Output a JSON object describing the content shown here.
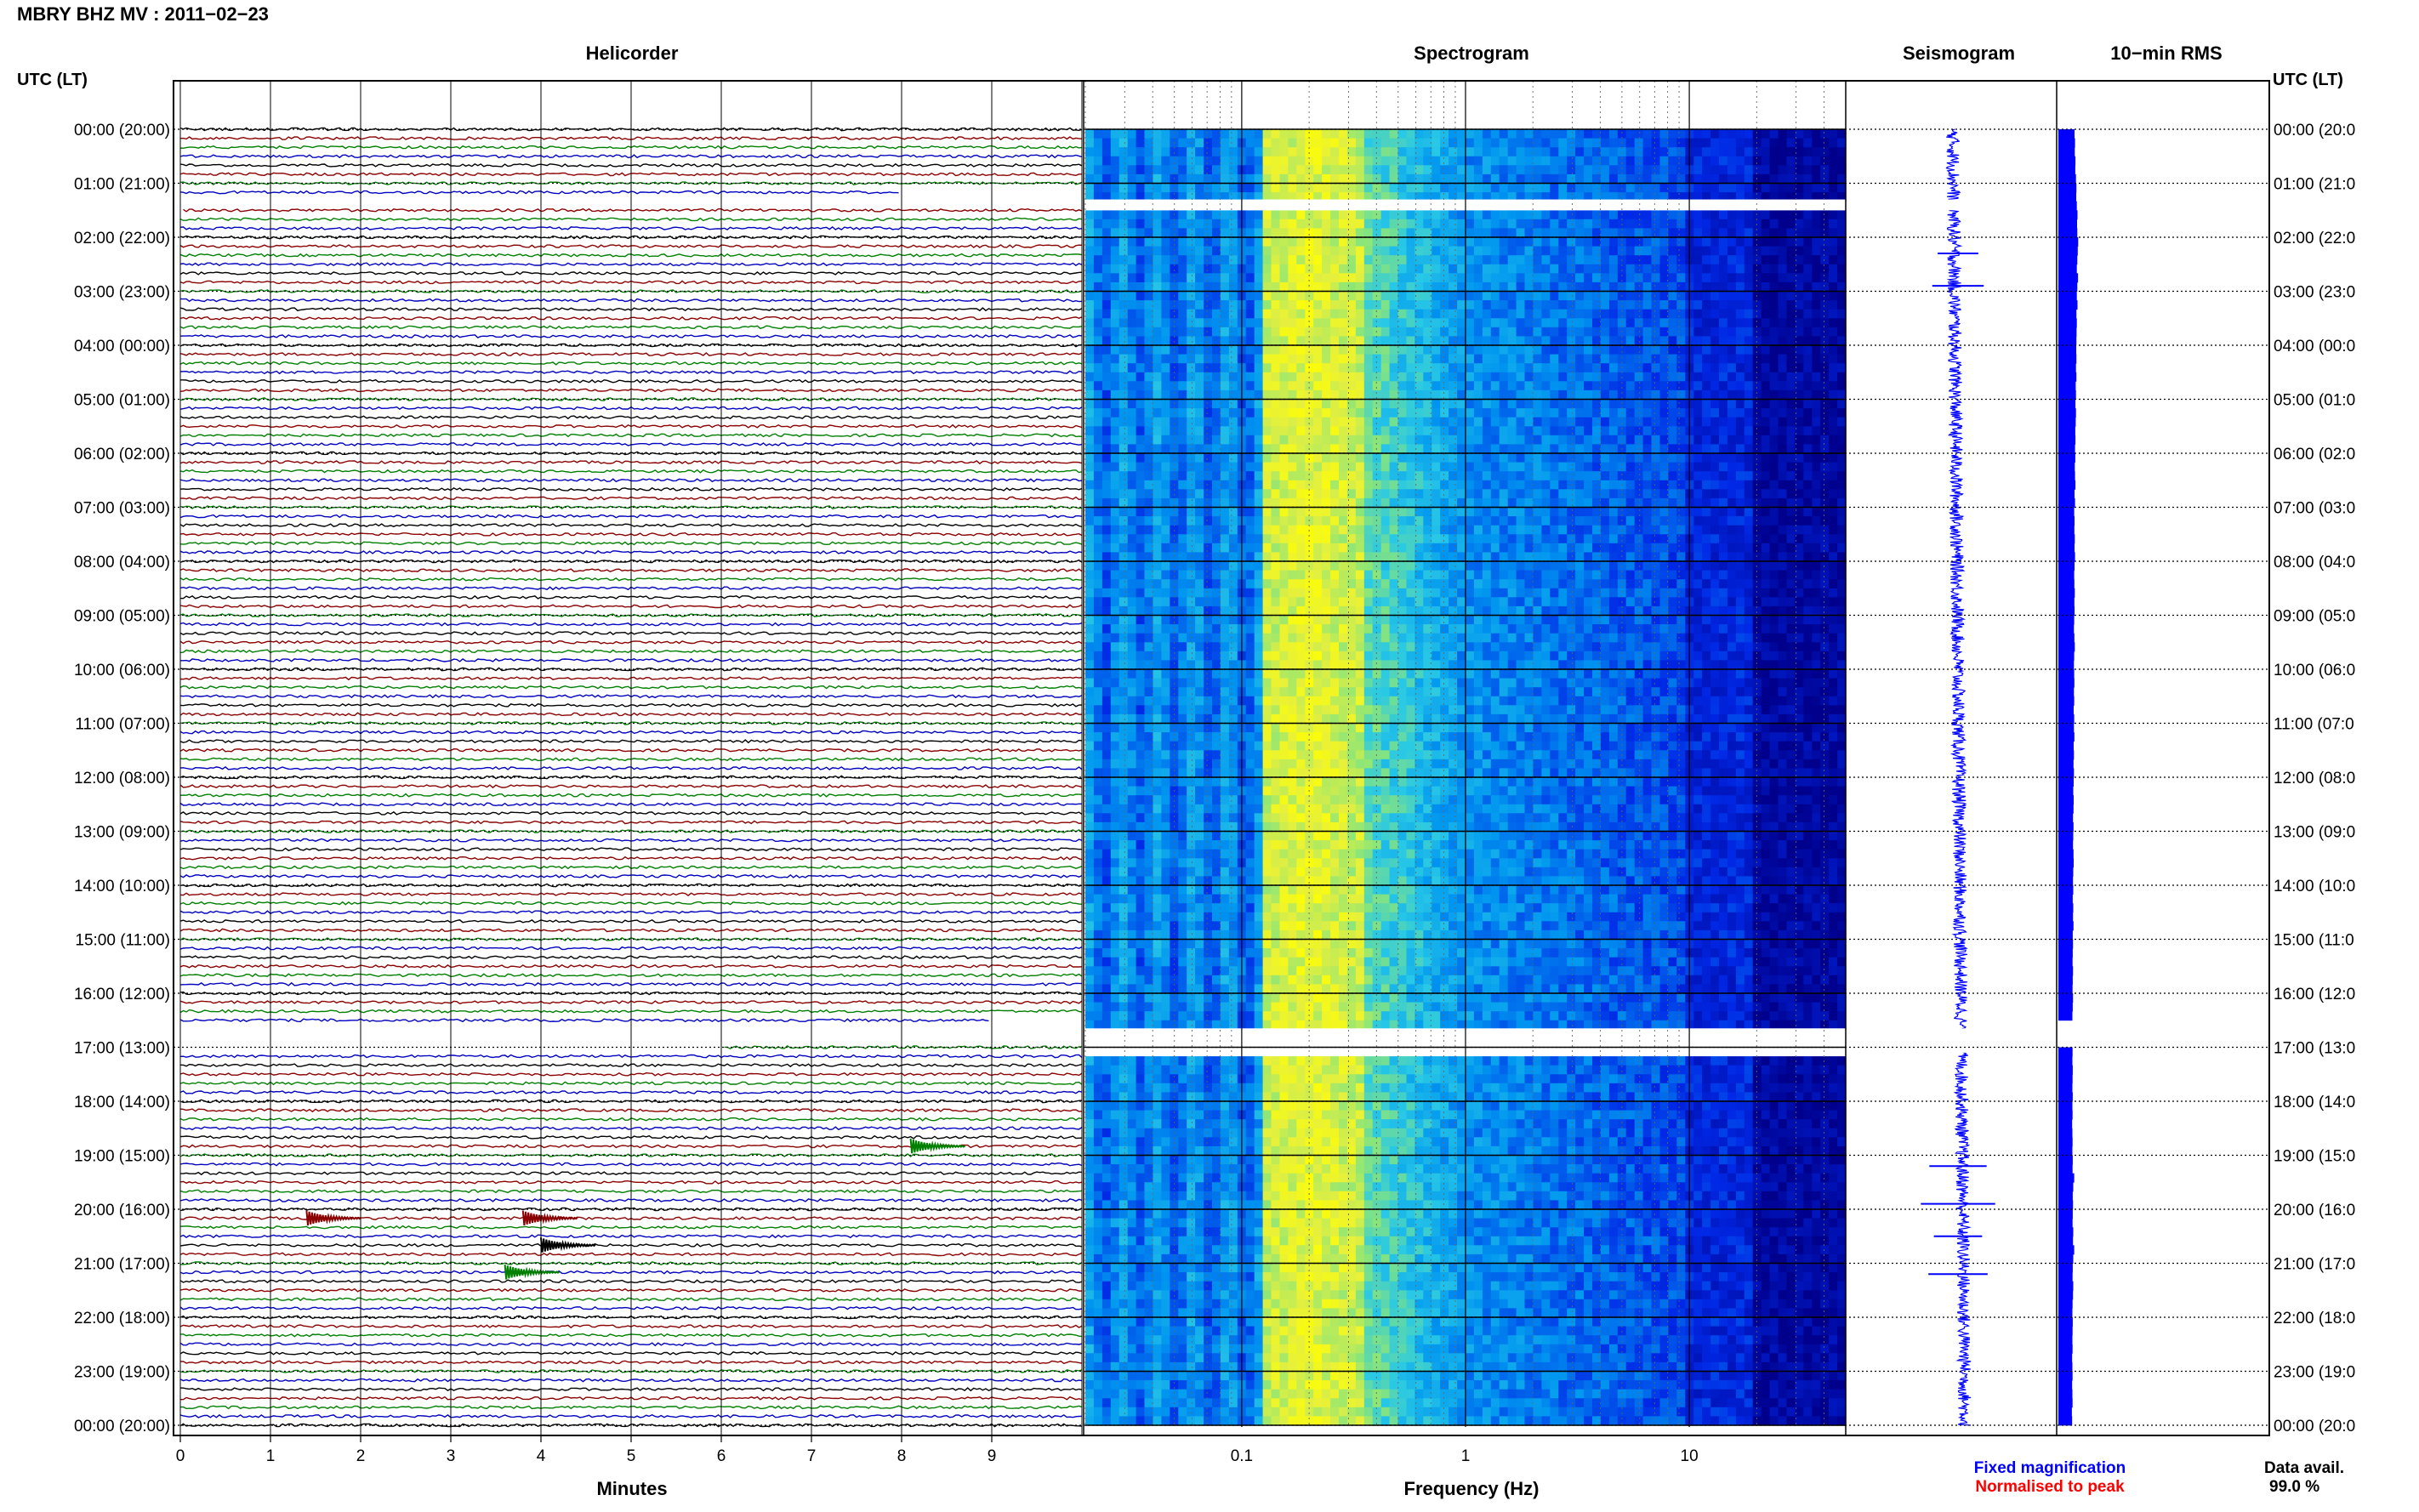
{
  "header": {
    "title": "MBRY BHZ MV : 2011−02−23"
  },
  "panels": {
    "helicorder": "Helicorder",
    "spectrogram": "Spectrogram",
    "seismogram": "Seismogram",
    "rms": "10−min RMS"
  },
  "time_axis": {
    "label_left": "UTC (LT)",
    "label_right": "UTC (LT)",
    "ticks_left": [
      "00:00 (20:00)",
      "01:00 (21:00)",
      "02:00 (22:00)",
      "03:00 (23:00)",
      "04:00 (00:00)",
      "05:00 (01:00)",
      "06:00 (02:00)",
      "07:00 (03:00)",
      "08:00 (04:00)",
      "09:00 (05:00)",
      "10:00 (06:00)",
      "11:00 (07:00)",
      "12:00 (08:00)",
      "13:00 (09:00)",
      "14:00 (10:00)",
      "15:00 (11:00)",
      "16:00 (12:00)",
      "17:00 (13:00)",
      "18:00 (14:00)",
      "19:00 (15:00)",
      "20:00 (16:00)",
      "21:00 (17:00)",
      "22:00 (18:00)",
      "23:00 (19:00)",
      "00:00 (20:00)"
    ],
    "ticks_right": [
      "00:00 (20:0",
      "01:00 (21:0",
      "02:00 (22:0",
      "03:00 (23:0",
      "04:00 (00:0",
      "05:00 (01:0",
      "06:00 (02:0",
      "07:00 (03:0",
      "08:00 (04:0",
      "09:00 (05:0",
      "10:00 (06:0",
      "11:00 (07:0",
      "12:00 (08:0",
      "13:00 (09:0",
      "14:00 (10:0",
      "15:00 (11:0",
      "16:00 (12:0",
      "17:00 (13:0",
      "18:00 (14:0",
      "19:00 (15:0",
      "20:00 (16:0",
      "21:00 (17:0",
      "22:00 (18:0",
      "23:00 (19:0",
      "00:00 (20:0"
    ]
  },
  "x_axes": {
    "minutes_label": "Minutes",
    "minutes_ticks": [
      "0",
      "1",
      "2",
      "3",
      "4",
      "5",
      "6",
      "7",
      "8",
      "9"
    ],
    "frequency_label": "Frequency (Hz)",
    "frequency_ticks": [
      "0.1",
      "1",
      "10"
    ]
  },
  "legend": {
    "fixed": "Fixed magnification",
    "normalised": "Normalised to peak",
    "fixed_color": "#0000ff",
    "normalised_color": "#ff0000"
  },
  "data_avail": {
    "label": "Data avail.",
    "value": "99.0 %"
  },
  "colors": {
    "trace_cycle": [
      "#000000",
      "#8b0000",
      "#008000",
      "#0000c0"
    ],
    "rms_bar": "#0000ff",
    "seismogram": "#0000ff"
  },
  "chart_data": {
    "type": "heatmap",
    "helicorder": {
      "x_range_minutes": [
        0,
        10
      ],
      "rows_per_hour": 6,
      "hours": 24,
      "gaps_hours": [
        [
          1.3,
          1.5
        ],
        [
          16.65,
          17.1
        ]
      ],
      "events": [
        {
          "hour": 18.9,
          "minute": 8.1,
          "color": "#008000"
        },
        {
          "hour": 21.1,
          "minute": 3.6,
          "color": "#008000"
        },
        {
          "hour": 20.7,
          "minute": 4.0,
          "color": "#000000"
        },
        {
          "hour": 20.1,
          "minute": 3.8,
          "color": "#8b0000"
        },
        {
          "hour": 20.1,
          "minute": 1.4,
          "color": "#8b0000"
        }
      ]
    },
    "spectrogram": {
      "frequency_range_hz": [
        0.02,
        50
      ],
      "scale": "log",
      "gaps_hours": [
        [
          1.3,
          1.5
        ],
        [
          16.65,
          17.1
        ]
      ]
    },
    "rms_10min": {
      "comment_free": true,
      "values": [
        0.72,
        0.74,
        0.73,
        0.76,
        0.75,
        0.78,
        0.8,
        0.79,
        0.82,
        0.85,
        0.83,
        0.84,
        0.88,
        0.86,
        0.84,
        0.82,
        0.87,
        0.84,
        0.82,
        0.85,
        0.8,
        0.82,
        0.81,
        0.8,
        0.79,
        0.8,
        0.78,
        0.8,
        0.77,
        0.78,
        0.76,
        0.78,
        0.77,
        0.75,
        0.76,
        0.74,
        0.75,
        0.73,
        0.74,
        0.76,
        0.72,
        0.74,
        0.7,
        0.72,
        0.71,
        0.73,
        0.72,
        0.74,
        0.72,
        0.7,
        0.71,
        0.73,
        0.71,
        0.72,
        0.7,
        0.69,
        0.71,
        0.73,
        0.7,
        0.69,
        0.7,
        0.71,
        0.69,
        0.7,
        0.68,
        0.7,
        0.69,
        0.71,
        0.68,
        0.69,
        0.67,
        0.69,
        0.68,
        0.66,
        0.68,
        0.67,
        0.65,
        0.67,
        0.66,
        0.65,
        0.67,
        0.68,
        0.66,
        0.65,
        0.66,
        0.64,
        0.66,
        0.65,
        0.67,
        0.64,
        0.65,
        0.64,
        0.63,
        0.65,
        0.64,
        0.63,
        0.65,
        0.64,
        0.62,
        0.0,
        0.0,
        0.0,
        0.63,
        0.62,
        0.64,
        0.63,
        0.62,
        0.64,
        0.62,
        0.63,
        0.61,
        0.62,
        0.63,
        0.62,
        0.64,
        0.63,
        0.7,
        0.66,
        0.64,
        0.65,
        0.64,
        0.63,
        0.66,
        0.65,
        0.7,
        0.66,
        0.64,
        0.63,
        0.66,
        0.65,
        0.63,
        0.62,
        0.64,
        0.63,
        0.62,
        0.63,
        0.61,
        0.62,
        0.63,
        0.61,
        0.62,
        0.63,
        0.6,
        0.61
      ],
      "x_range": [
        0,
        1
      ]
    },
    "seismogram": {
      "spikes_hours": [
        1.4,
        2.3,
        2.9,
        19.2,
        19.9,
        20.5,
        21.2
      ]
    }
  }
}
